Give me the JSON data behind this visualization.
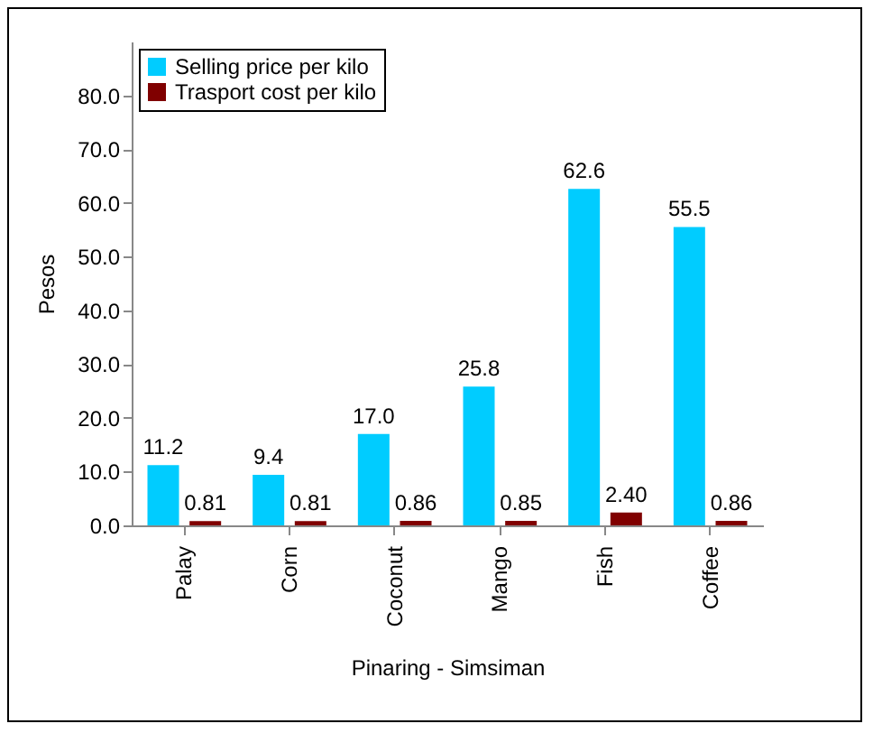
{
  "chart_data": {
    "type": "bar",
    "xlabel": "Pinaring - Simsiman",
    "ylabel": "Pesos",
    "categories": [
      "Palay",
      "Corn",
      "Coconut",
      "Mango",
      "Fish",
      "Coffee"
    ],
    "series": [
      {
        "name": "Selling price per kilo",
        "color": "#00ccff",
        "values": [
          11.2,
          9.4,
          17.0,
          25.8,
          62.6,
          55.5
        ],
        "value_labels": [
          "11.2",
          "9.4",
          "17.0",
          "25.8",
          "62.6",
          "55.5"
        ]
      },
      {
        "name": "Trasport cost per kilo",
        "color": "#800000",
        "values": [
          0.81,
          0.81,
          0.86,
          0.85,
          2.4,
          0.86
        ],
        "value_labels": [
          "0.81",
          "0.81",
          "0.86",
          "0.85",
          "2.40",
          "0.86"
        ]
      }
    ],
    "ylim": [
      0,
      90
    ],
    "yticks": [
      {
        "value": 0,
        "label": "0.0"
      },
      {
        "value": 10,
        "label": "10.0"
      },
      {
        "value": 20,
        "label": "20.0"
      },
      {
        "value": 30,
        "label": "30.0"
      },
      {
        "value": 40,
        "label": "40.0"
      },
      {
        "value": 50,
        "label": "50.0"
      },
      {
        "value": 60,
        "label": "60.0"
      },
      {
        "value": 70,
        "label": "70.0"
      },
      {
        "value": 80,
        "label": "80.0"
      }
    ],
    "grid": false,
    "legend": "top left"
  }
}
